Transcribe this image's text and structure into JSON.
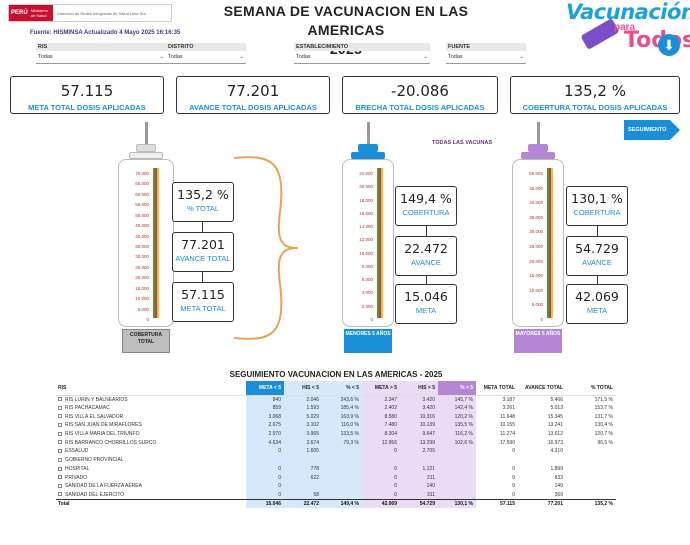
{
  "header": {
    "gov_logo_text": "PERÚ",
    "gov_logo_sub": "Ministerio de Salud",
    "gov_logo_desc": "Dirección de Redes Integradas de Salud Lima Sur",
    "title_line1": "SEMANA DE VACUNACION EN LAS AMERICAS",
    "title_line2": "2025",
    "brand_word1": "Vacunación",
    "brand_word2": "para",
    "brand_word3": "Todos",
    "source": "Fuente: HISMINSA Actualizado 4 Mayo 2025 16:16:35"
  },
  "filters": [
    {
      "label": "RIS",
      "value": "Todas"
    },
    {
      "label": "DISTRITO",
      "value": "Todas"
    },
    {
      "label": "ESTABLECIMIENTO",
      "value": "Todas"
    },
    {
      "label": "FUENTE",
      "value": "Todas"
    }
  ],
  "kpis": [
    {
      "value": "57.115",
      "label": "META TOTAL DOSIS APLICADAS"
    },
    {
      "value": "77.201",
      "label": "AVANCE TOTAL DOSIS APLICADAS"
    },
    {
      "value": "-20.086",
      "label": "BRECHA TOTAL DOSIS APLICADAS"
    },
    {
      "value": "135,2 %",
      "label": "COBERTURA TOTAL DOSIS APLICADAS"
    }
  ],
  "seguimiento_button": "SEGUIMIENTO",
  "todas_vacunas": "TODAS LAS VACUNAS",
  "syringes": [
    {
      "caption": "COBERTURA TOTAL",
      "ticks": [
        "70.000",
        "65.000",
        "60.000",
        "55.000",
        "50.000",
        "45.000",
        "40.000",
        "35.000",
        "30.000",
        "25.000",
        "20.000",
        "15.000",
        "10.000",
        "5.000",
        "0"
      ],
      "boxes": [
        {
          "value": "135,2 %",
          "label": "% TOTAL"
        },
        {
          "value": "77.201",
          "label": "AVANCE TOTAL"
        },
        {
          "value": "57.115",
          "label": "META TOTAL"
        }
      ]
    },
    {
      "caption": "MENORES 5 AÑOS",
      "ticks": [
        "22.000",
        "20.000",
        "18.000",
        "16.000",
        "14.000",
        "12.000",
        "10.000",
        "8.000",
        "6.000",
        "4.000",
        "2.000",
        "0"
      ],
      "boxes": [
        {
          "value": "149,4 %",
          "label": "COBERTURA"
        },
        {
          "value": "22.472",
          "label": "AVANCE"
        },
        {
          "value": "15.046",
          "label": "META"
        }
      ]
    },
    {
      "caption": "MAYORES 5 AÑOS",
      "ticks": [
        "50.000",
        "45.000",
        "40.000",
        "35.000",
        "30.000",
        "25.000",
        "20.000",
        "15.000",
        "10.000",
        "5.000",
        "0"
      ],
      "boxes": [
        {
          "value": "130,1 %",
          "label": "COBERTURA"
        },
        {
          "value": "54.729",
          "label": "AVANCE"
        },
        {
          "value": "42.069",
          "label": "META"
        }
      ]
    }
  ],
  "table": {
    "title": "SEGUIMIENTO VACUNACION EN LAS AMERICAS - 2025",
    "columns": [
      "RIS",
      "META < 5",
      "HIS < 5",
      "% < 5",
      "META > 5",
      "HIS > 5",
      "% > 5",
      "META TOTAL",
      "AVANCE TOTAL",
      "% TOTAL"
    ],
    "rows": [
      [
        "RIS LURIN Y BALNEARIOS",
        "840",
        "2.046",
        "243,6 %",
        "2.347",
        "3.420",
        "145,7 %",
        "3.187",
        "5.466",
        "171,5 %"
      ],
      [
        "RIS PACHACAMAC",
        "859",
        "1.593",
        "185,4 %",
        "2.402",
        "3.420",
        "142,4 %",
        "3.261",
        "5.013",
        "153,7 %"
      ],
      [
        "RIS VILLA EL SALVADOR",
        "3.068",
        "5.029",
        "163,9 %",
        "8.580",
        "10.316",
        "120,2 %",
        "11.648",
        "15.345",
        "131,7 %"
      ],
      [
        "RIS SAN JUAN DE MIRAFLORES",
        "2.675",
        "3.102",
        "116,0 %",
        "7.480",
        "10.139",
        "135,5 %",
        "10.155",
        "13.241",
        "130,4 %"
      ],
      [
        "RIS VILLA MARIA DEL TRIUNFO",
        "2.970",
        "3.965",
        "133,5 %",
        "8.304",
        "9.647",
        "116,2 %",
        "11.274",
        "13.612",
        "120,7 %"
      ],
      [
        "RIS BARRANCO CHORRILLOS SURCO",
        "4.634",
        "3.674",
        "79,3 %",
        "12.956",
        "13.299",
        "102,6 %",
        "17.590",
        "16.973",
        "96,5 %"
      ],
      [
        "ESSALUD",
        "0",
        "1.605",
        "",
        "0",
        "2.705",
        "",
        "0",
        "4.310",
        ""
      ],
      [
        "GOBIERNO PROVINCIAL",
        "",
        "",
        "",
        "",
        "",
        "",
        "",
        "",
        ""
      ],
      [
        "HOSPITAL",
        "0",
        "778",
        "",
        "0",
        "1.121",
        "",
        "0",
        "1.899",
        ""
      ],
      [
        "PRIVADO",
        "0",
        "622",
        "",
        "0",
        "211",
        "",
        "0",
        "833",
        ""
      ],
      [
        "SANIDAD DE LA FUERZA AEREA",
        "0",
        "",
        "",
        "0",
        "140",
        "",
        "0",
        "140",
        ""
      ],
      [
        "SANIDAD DEL EJERCITO",
        "0",
        "58",
        "",
        "0",
        "311",
        "",
        "0",
        "369",
        ""
      ]
    ],
    "total": [
      "Total",
      "15.046",
      "22.472",
      "149,4 %",
      "42.069",
      "54.729",
      "130,1 %",
      "57.115",
      "77.201",
      "135,2 %"
    ]
  }
}
